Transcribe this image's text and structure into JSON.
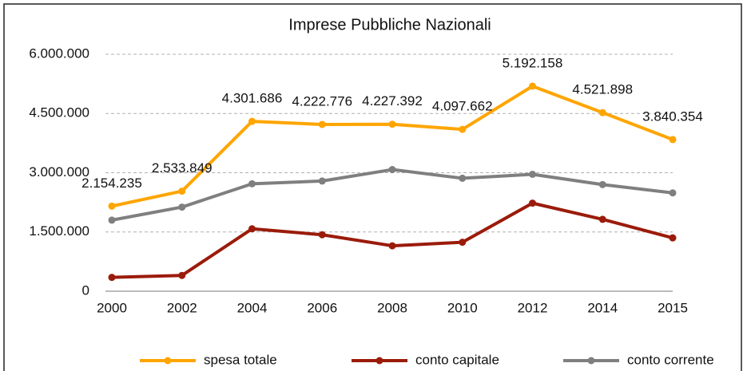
{
  "chart_data": {
    "type": "line",
    "title": "Imprese Pubbliche Nazionali",
    "categories": [
      "2000",
      "2002",
      "2004",
      "2006",
      "2008",
      "2010",
      "2012",
      "2014",
      "2015"
    ],
    "series": [
      {
        "name": "spesa totale",
        "color": "#ffa500",
        "values": [
          2154235,
          2533849,
          4301686,
          4222776,
          4227392,
          4097662,
          5192158,
          4521898,
          3840354
        ],
        "value_labels": [
          "2.154.235",
          "2.533.849",
          "4.301.686",
          "4.222.776",
          "4.227.392",
          "4.097.662",
          "5.192.158",
          "4.521.898",
          "3.840.354"
        ]
      },
      {
        "name": "conto capitale",
        "color": "#9b1b0a",
        "values": [
          350000,
          400000,
          1580000,
          1430000,
          1150000,
          1240000,
          2230000,
          1820000,
          1350000
        ]
      },
      {
        "name": "conto corrente",
        "color": "#7f7f7f",
        "values": [
          1800000,
          2130000,
          2720000,
          2790000,
          3080000,
          2860000,
          2960000,
          2700000,
          2490000
        ]
      }
    ],
    "ylim": [
      0,
      6000000
    ],
    "yticks": [
      0,
      {
        "value": 1500000,
        "label": "1.500.000"
      },
      {
        "value": 3000000,
        "label": "3.000.000"
      },
      {
        "value": 4500000,
        "label": "4.500.000"
      },
      {
        "value": 6000000,
        "label": "6.000.000"
      }
    ],
    "grid": true,
    "legend": "bottom"
  }
}
